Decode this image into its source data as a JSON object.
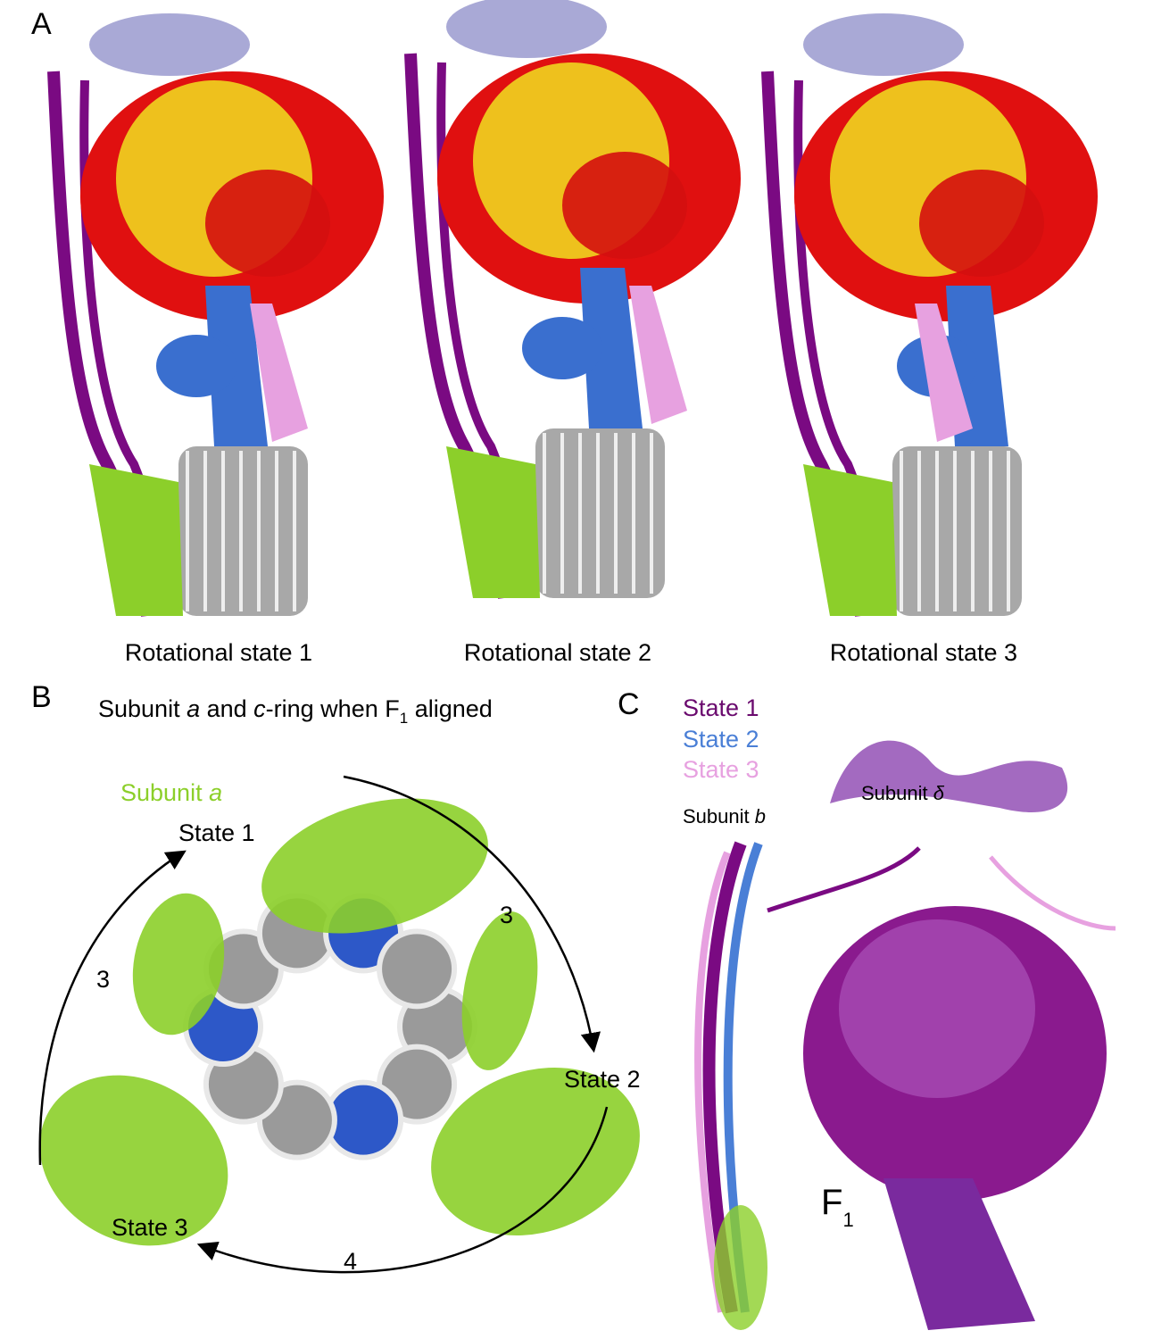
{
  "panel_a": {
    "label": "A",
    "states": [
      "Rotational state 1",
      "Rotational state 2",
      "Rotational state 3"
    ]
  },
  "panel_b": {
    "label": "B",
    "title": [
      "Subunit ",
      "a",
      " and ",
      "c",
      "-ring when F",
      "1",
      " aligned"
    ],
    "subunit_a": [
      "Subunit ",
      "a"
    ],
    "state_1": "State 1",
    "state_2": "State 2",
    "state_3": "State 3",
    "step_1_2": "3",
    "step_3_1": "3",
    "step_2_3": "4"
  },
  "panel_c": {
    "label": "C",
    "legend": [
      "State 1",
      "State 2",
      "State 3"
    ],
    "subunit_delta": [
      "Subunit ",
      "δ"
    ],
    "subunit_b": [
      "Subunit ",
      "b"
    ],
    "f1": [
      "F",
      "1"
    ]
  }
}
